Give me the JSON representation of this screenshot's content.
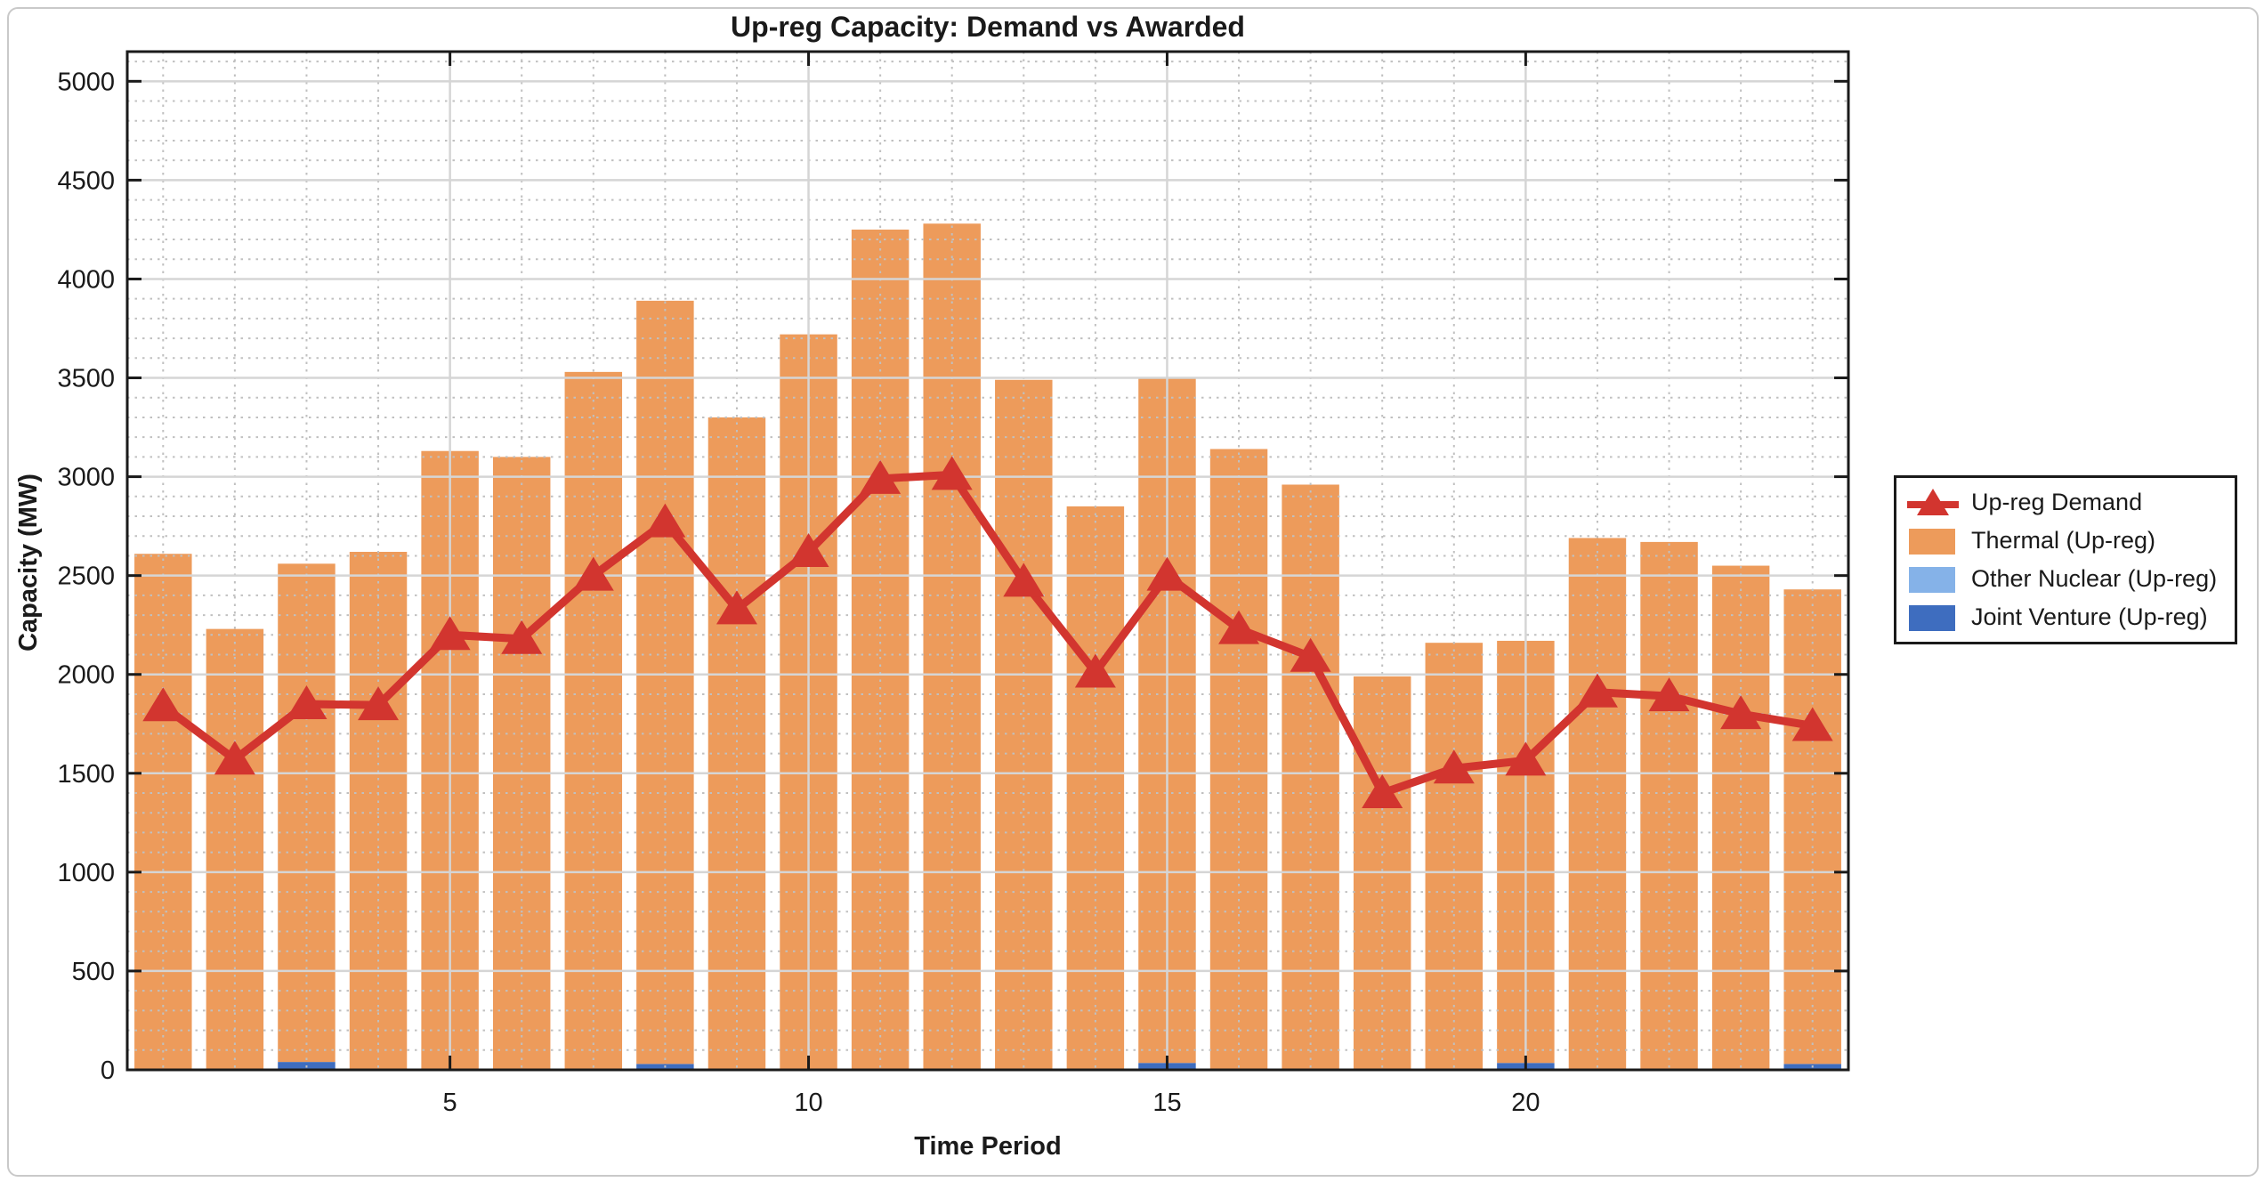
{
  "figure": {
    "border_color": "#c9c9c9",
    "background": "#ffffff"
  },
  "chart_data": {
    "type": "bar",
    "subtype": "stacked-bars-with-line-overlay",
    "title": "Up-reg Capacity: Demand vs Awarded",
    "xlabel": "Time Period",
    "ylabel": "Capacity (MW)",
    "xlim": [
      0.5,
      24.5
    ],
    "ylim": [
      0,
      5150
    ],
    "xticks": [
      5,
      10,
      15,
      20
    ],
    "yticks": [
      0,
      500,
      1000,
      1500,
      2000,
      2500,
      3000,
      3500,
      4000,
      4500,
      5000
    ],
    "minor_y_step": 100,
    "minor_x_step": 1,
    "grid": "on",
    "minor_grid": "on",
    "legend_position": "right-outside",
    "categories": [
      1,
      2,
      3,
      4,
      5,
      6,
      7,
      8,
      9,
      10,
      11,
      12,
      13,
      14,
      15,
      16,
      17,
      18,
      19,
      20,
      21,
      22,
      23,
      24
    ],
    "bar_width_fraction": 0.8,
    "series": [
      {
        "name": "Joint Venture (Up-reg)",
        "color": "#3e6dbf",
        "values": [
          0,
          0,
          40,
          0,
          0,
          0,
          0,
          30,
          0,
          0,
          0,
          0,
          0,
          0,
          35,
          0,
          0,
          0,
          0,
          35,
          0,
          0,
          0,
          30
        ]
      },
      {
        "name": "Other Nuclear (Up-reg)",
        "color": "#85b2e8",
        "values": [
          0,
          0,
          0,
          0,
          0,
          0,
          0,
          0,
          0,
          0,
          0,
          0,
          0,
          0,
          0,
          0,
          0,
          0,
          0,
          0,
          0,
          0,
          0,
          0
        ]
      },
      {
        "name": "Thermal (Up-reg)",
        "color": "#ed9b5b",
        "values": [
          2610,
          2230,
          2520,
          2620,
          3130,
          3100,
          3530,
          3860,
          3300,
          3720,
          4250,
          4280,
          3490,
          2850,
          3465,
          3140,
          2960,
          1990,
          2160,
          2135,
          2690,
          2670,
          2550,
          2400
        ]
      }
    ],
    "demand_line": {
      "name": "Up-reg Demand",
      "color": "#d2352f",
      "marker": "triangle-up",
      "values": [
        1840,
        1570,
        1850,
        1845,
        2200,
        2180,
        2500,
        2770,
        2330,
        2620,
        2990,
        3010,
        2470,
        2010,
        2500,
        2230,
        2090,
        1400,
        1525,
        1565,
        1910,
        1890,
        1800,
        1740
      ]
    },
    "axis_color": "#1a1a1a",
    "grid_major_color": "#d5d5d5",
    "grid_minor_color": "#c0c0c0",
    "tick_label_color": "#1a1a1a"
  },
  "legend": {
    "items": [
      {
        "label": "Up-reg Demand",
        "type": "line",
        "color": "#d2352f"
      },
      {
        "label": "Thermal (Up-reg)",
        "type": "bar",
        "color": "#ed9b5b"
      },
      {
        "label": "Other Nuclear (Up-reg)",
        "type": "bar",
        "color": "#85b2e8"
      },
      {
        "label": "Joint Venture (Up-reg)",
        "type": "bar",
        "color": "#3e6dbf"
      }
    ]
  }
}
